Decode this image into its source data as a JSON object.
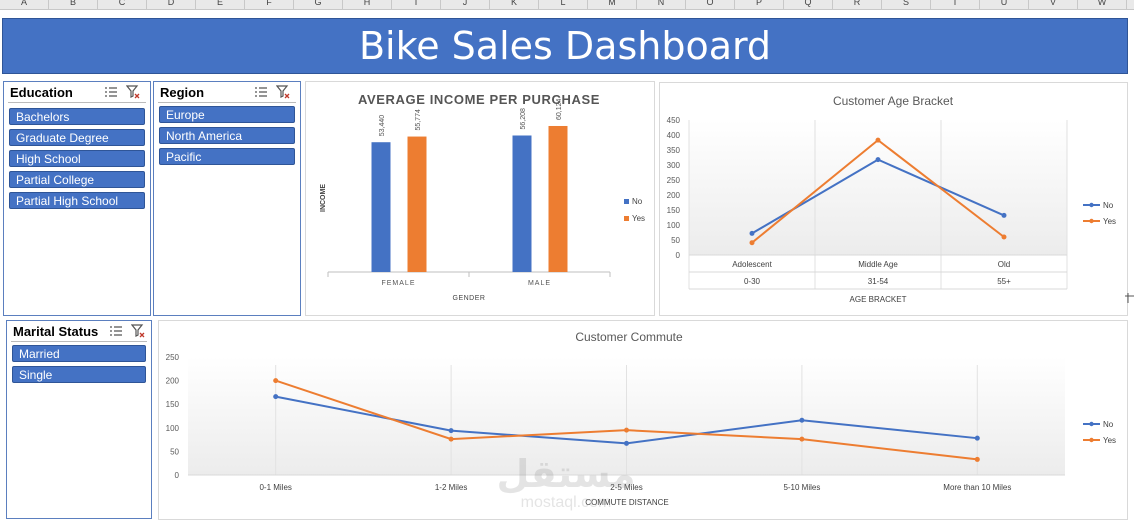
{
  "sheet": {
    "columns": [
      "A",
      "B",
      "C",
      "D",
      "E",
      "F",
      "G",
      "H",
      "I",
      "J",
      "K",
      "L",
      "M",
      "N",
      "O",
      "P",
      "Q",
      "R",
      "S",
      "T",
      "U",
      "V",
      "W"
    ]
  },
  "dashboard": {
    "title": "Bike Sales Dashboard"
  },
  "slicers": {
    "education": {
      "label": "Education",
      "items": [
        "Bachelors",
        "Graduate Degree",
        "High School",
        "Partial College",
        "Partial High School"
      ]
    },
    "region": {
      "label": "Region",
      "items": [
        "Europe",
        "North America",
        "Pacific"
      ]
    },
    "marital": {
      "label": "Marital Status",
      "items": [
        "Married",
        "Single"
      ]
    }
  },
  "colors": {
    "no": "#4472c4",
    "yes": "#ed7d31",
    "banner": "#4472c4"
  },
  "chart_data": [
    {
      "type": "bar",
      "title": "AVERAGE INCOME PER PURCHASE",
      "xlabel": "GENDER",
      "ylabel": "INCOME",
      "categories": [
        "FEMALE",
        "MALE"
      ],
      "series": [
        {
          "name": "No",
          "values": [
            53440,
            56208
          ],
          "labels": [
            "53,440",
            "56,208"
          ]
        },
        {
          "name": "Yes",
          "values": [
            55774,
            60124
          ],
          "labels": [
            "55,774",
            "60,124"
          ]
        }
      ],
      "legend": "right"
    },
    {
      "type": "line",
      "title": "Customer Age Bracket",
      "xlabel": "AGE BRACKET",
      "categories": [
        "Adolescent",
        "Middle Age",
        "Old"
      ],
      "subcategories": [
        "0-30",
        "31-54",
        "55+"
      ],
      "ylim": [
        0,
        450
      ],
      "yticks": [
        "0",
        "50",
        "100",
        "150",
        "200",
        "250",
        "300",
        "350",
        "400",
        "450"
      ],
      "series": [
        {
          "name": "No",
          "values": [
            72,
            318,
            132
          ]
        },
        {
          "name": "Yes",
          "values": [
            41,
            383,
            60
          ]
        }
      ],
      "legend": "right"
    },
    {
      "type": "line",
      "title": "Customer Commute",
      "xlabel": "COMMUTE DISTANCE",
      "categories": [
        "0-1 Miles",
        "1-2 Miles",
        "2-5 Miles",
        "5-10 Miles",
        "More than 10 Miles"
      ],
      "ylim": [
        0,
        250
      ],
      "yticks": [
        "0",
        "50",
        "100",
        "150",
        "200",
        "250"
      ],
      "series": [
        {
          "name": "No",
          "values": [
            166,
            94,
            67,
            116,
            78
          ]
        },
        {
          "name": "Yes",
          "values": [
            200,
            76,
            95,
            76,
            33
          ]
        }
      ],
      "legend": "right"
    }
  ],
  "watermark": {
    "arabic": "مستقل",
    "latin": "mostaql.com"
  }
}
